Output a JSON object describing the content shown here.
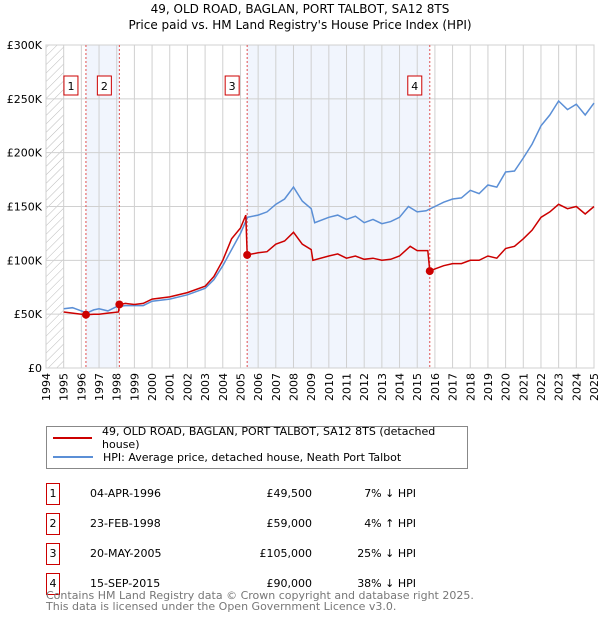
{
  "chart_data": {
    "type": "line",
    "title": "49, OLD ROAD, BAGLAN, PORT TALBOT, SA12 8TS",
    "subtitle": "Price paid vs. HM Land Registry's House Price Index (HPI)",
    "xlim": [
      1994,
      2025
    ],
    "ylim": [
      0,
      300000
    ],
    "y_ticks": [
      {
        "v": 0,
        "label": "£0"
      },
      {
        "v": 50000,
        "label": "£50K"
      },
      {
        "v": 100000,
        "label": "£100K"
      },
      {
        "v": 150000,
        "label": "£150K"
      },
      {
        "v": 200000,
        "label": "£200K"
      },
      {
        "v": 250000,
        "label": "£250K"
      },
      {
        "v": 300000,
        "label": "£300K"
      }
    ],
    "x_ticks": [
      "1994",
      "1995",
      "1996",
      "1997",
      "1998",
      "1999",
      "2000",
      "2001",
      "2002",
      "2003",
      "2004",
      "2005",
      "2006",
      "2007",
      "2008",
      "2009",
      "2010",
      "2011",
      "2012",
      "2013",
      "2014",
      "2015",
      "2016",
      "2017",
      "2018",
      "2019",
      "2020",
      "2021",
      "2022",
      "2023",
      "2024",
      "2025"
    ],
    "grid": true,
    "series": [
      {
        "name": "49, OLD ROAD, BAGLAN, PORT TALBOT, SA12 8TS (detached house)",
        "color": "#cc0000",
        "x": [
          1995,
          1995.5,
          1996,
          1996.26,
          1996.7,
          1997,
          1997.5,
          1998.1,
          1998.15,
          1998.5,
          1999,
          1999.5,
          2000,
          2001,
          2002,
          2003,
          2003.5,
          2004,
          2004.5,
          2005,
          2005.3,
          2005.38,
          2006,
          2006.5,
          2007,
          2007.5,
          2008,
          2008.5,
          2009,
          2009.1,
          2010,
          2010.5,
          2011,
          2011.5,
          2012,
          2012.5,
          2013,
          2013.5,
          2014,
          2014.6,
          2015,
          2015.6,
          2015.71,
          2016,
          2016.5,
          2017,
          2017.5,
          2018,
          2018.5,
          2019,
          2019.5,
          2020,
          2020.5,
          2021,
          2021.5,
          2022,
          2022.5,
          2023,
          2023.5,
          2024,
          2024.5,
          2025
        ],
        "y": [
          52000,
          51000,
          50000,
          49500,
          50000,
          50000,
          51000,
          52000,
          59000,
          60000,
          59000,
          60000,
          64000,
          66000,
          70000,
          76000,
          85000,
          100000,
          120000,
          130000,
          142000,
          105000,
          107000,
          108000,
          115000,
          118000,
          126000,
          115000,
          110000,
          100000,
          104000,
          106000,
          102000,
          104000,
          101000,
          102000,
          100000,
          101000,
          104000,
          113000,
          109000,
          109000,
          90000,
          92000,
          95000,
          97000,
          97000,
          100000,
          100000,
          104000,
          102000,
          111000,
          113000,
          120000,
          128000,
          140000,
          145000,
          152000,
          148000,
          150000,
          143000,
          150000
        ]
      },
      {
        "name": "HPI: Average price, detached house, Neath Port Talbot",
        "color": "#5b8fd6",
        "x": [
          1995,
          1995.5,
          1996,
          1996.3,
          1996.7,
          1997,
          1997.5,
          1998,
          1998.5,
          1999,
          1999.5,
          2000,
          2001,
          2002,
          2003,
          2003.5,
          2004,
          2004.5,
          2005,
          2005.4,
          2006,
          2006.5,
          2007,
          2007.5,
          2008,
          2008.5,
          2009,
          2009.2,
          2010,
          2010.5,
          2011,
          2011.5,
          2012,
          2012.5,
          2013,
          2013.5,
          2014,
          2014.5,
          2015,
          2015.5,
          2016,
          2016.5,
          2017,
          2017.5,
          2018,
          2018.5,
          2019,
          2019.5,
          2020,
          2020.5,
          2021,
          2021.5,
          2022,
          2022.5,
          2023,
          2023.5,
          2024,
          2024.5,
          2025
        ],
        "y": [
          55000,
          56000,
          53000,
          51000,
          54000,
          55000,
          53000,
          57000,
          58000,
          58000,
          58000,
          62000,
          64000,
          68000,
          74000,
          82000,
          95000,
          110000,
          125000,
          140000,
          142000,
          145000,
          152000,
          157000,
          168000,
          155000,
          148000,
          135000,
          140000,
          142000,
          138000,
          141000,
          135000,
          138000,
          134000,
          136000,
          140000,
          150000,
          145000,
          146000,
          150000,
          154000,
          157000,
          158000,
          165000,
          162000,
          170000,
          168000,
          182000,
          183000,
          195000,
          208000,
          225000,
          235000,
          248000,
          240000,
          245000,
          235000,
          246000
        ]
      }
    ],
    "sales": [
      {
        "n": "1",
        "x": 1996.26,
        "y": 49500
      },
      {
        "n": "2",
        "x": 1998.15,
        "y": 59000
      },
      {
        "n": "3",
        "x": 2005.38,
        "y": 105000
      },
      {
        "n": "4",
        "x": 2015.71,
        "y": 90000
      }
    ],
    "shaded_ranges": [
      [
        1996.26,
        1998.15
      ],
      [
        2005.38,
        2015.71
      ]
    ],
    "hatched_range": [
      1994,
      1995
    ]
  },
  "legend": {
    "red": "49, OLD ROAD, BAGLAN, PORT TALBOT, SA12 8TS (detached house)",
    "blue": "HPI: Average price, detached house, Neath Port Talbot"
  },
  "table": [
    {
      "n": "1",
      "date": "04-APR-1996",
      "price": "£49,500",
      "hpi": "7% ↓ HPI"
    },
    {
      "n": "2",
      "date": "23-FEB-1998",
      "price": "£59,000",
      "hpi": "4% ↑ HPI"
    },
    {
      "n": "3",
      "date": "20-MAY-2005",
      "price": "£105,000",
      "hpi": "25% ↓ HPI"
    },
    {
      "n": "4",
      "date": "15-SEP-2015",
      "price": "£90,000",
      "hpi": "38% ↓ HPI"
    }
  ],
  "footer": {
    "line1": "Contains HM Land Registry data © Crown copyright and database right 2025.",
    "line2": "This data is licensed under the Open Government Licence v3.0."
  }
}
